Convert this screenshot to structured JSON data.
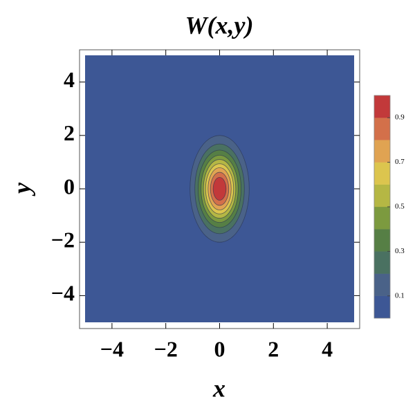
{
  "chart_data": {
    "type": "contour",
    "title": "W(x,y)",
    "x_label": "x",
    "y_label": "y",
    "xlim": [
      -5,
      5
    ],
    "ylim": [
      -5,
      5
    ],
    "xticks": [
      {
        "value": -4,
        "label": "−4"
      },
      {
        "value": -2,
        "label": "−2"
      },
      0,
      2,
      4
    ],
    "yticks": [
      {
        "value": -4,
        "label": "−4"
      },
      {
        "value": -2,
        "label": "−2"
      },
      0,
      2,
      4
    ],
    "band_colors": [
      "#3d5795",
      "#4a6288",
      "#4a7161",
      "#567f45",
      "#7c9a3f",
      "#b5b744",
      "#dcc54e",
      "#e0a352",
      "#d3704a",
      "#c2393a"
    ],
    "clim": [
      0,
      1
    ],
    "colorbar_ticks": [
      0.1,
      0.3,
      0.5,
      0.7,
      0.9
    ],
    "contours": [
      {
        "level": 0.1,
        "rx": 1.1,
        "ry": 2.0
      },
      {
        "level": 0.2,
        "rx": 0.92,
        "ry": 1.68
      },
      {
        "level": 0.3,
        "rx": 0.8,
        "ry": 1.45
      },
      {
        "level": 0.4,
        "rx": 0.69,
        "ry": 1.26
      },
      {
        "level": 0.5,
        "rx": 0.6,
        "ry": 1.1
      },
      {
        "level": 0.6,
        "rx": 0.52,
        "ry": 0.94
      },
      {
        "level": 0.7,
        "rx": 0.43,
        "ry": 0.79
      },
      {
        "level": 0.8,
        "rx": 0.34,
        "ry": 0.62
      },
      {
        "level": 0.9,
        "rx": 0.24,
        "ry": 0.43
      }
    ]
  }
}
